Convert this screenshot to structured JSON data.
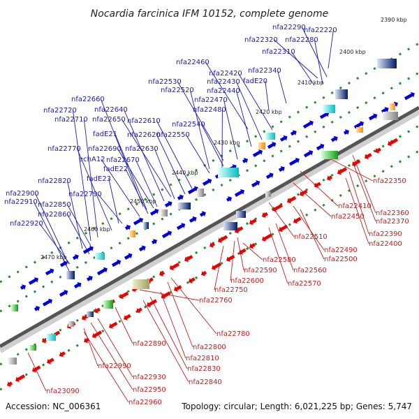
{
  "title": "Nocardia farcinica IFM 10152, complete genome",
  "footer": {
    "accession": "Accession: NC_006361",
    "topology": "Topology: circular; Length: 6,021,225 bp; Genes: 5,747"
  },
  "colors": {
    "forward_strand": "#0000dd",
    "reverse_strand": "#ee0000",
    "forward_label": "#1a1ab4",
    "reverse_label": "#c81e1e",
    "backbone": "#555555",
    "tick": "#2e8b2e"
  },
  "kbp_labels": [
    "2390 kbp",
    "2400 kbp",
    "2410 kbp",
    "2420 kbp",
    "2430 kbp",
    "2440 kbp",
    "2450 kbp",
    "2460 kbp",
    "2470 kbp"
  ],
  "forward_genes": [
    "nfa22290",
    "nfa22220",
    "nfa22320",
    "nfa22280",
    "nfa22310",
    "nfa22460",
    "nfa22420",
    "nfa22340",
    "nfa22530",
    "nfa22430",
    "fadE20",
    "nfa22520",
    "nfa22440",
    "nfa22660",
    "nfa22470",
    "nfa22640",
    "nfa22720",
    "nfa22480",
    "nfa22650",
    "nfa22610",
    "nfa22710",
    "nfa22540",
    "fadE21",
    "nfa22620",
    "nfa22550",
    "nfa22770",
    "nfa22690",
    "nfa22630",
    "echA12",
    "nfa22670",
    "fadE22",
    "fadE23",
    "nfa22820",
    "nfa22790",
    "nfa22900",
    "nfa22910",
    "nfa22850",
    "nfa22860",
    "nfa22920"
  ],
  "reverse_genes": [
    "nfa22350",
    "nfa22410",
    "nfa22360",
    "nfa22450",
    "nfa22370",
    "nfa22390",
    "nfa22510",
    "nfa22400",
    "nfa22490",
    "nfa22580",
    "nfa22500",
    "nfa22590",
    "nfa22560",
    "nfa22600",
    "nfa22570",
    "nfa22750",
    "nfa22760",
    "nfa22780",
    "nfa22890",
    "nfa22800",
    "nfa22810",
    "nfa22990",
    "nfa22830",
    "nfa22930",
    "nfa22840",
    "nfa22950",
    "nfa23090",
    "nfa22960"
  ]
}
